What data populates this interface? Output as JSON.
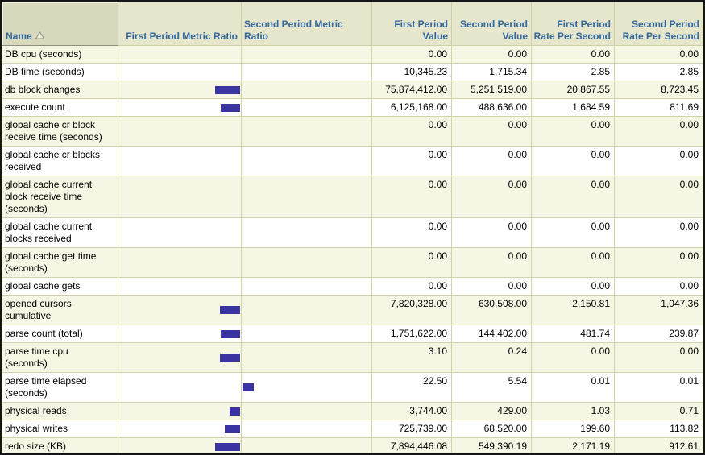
{
  "table": {
    "sort": {
      "sorted_by": "Name",
      "direction": "ascending"
    },
    "colors": {
      "bar": "#3A34A3",
      "header_bg": "#E6E6CD",
      "sorted_header_bg": "#D8D8BC",
      "header_text": "#336699",
      "alt_row_bg": "#F6F6E4",
      "grid_line": "#D2D2A8"
    },
    "columns": [
      {
        "label": "Name"
      },
      {
        "label": "First Period Metric Ratio"
      },
      {
        "label": "Second Period Metric Ratio"
      },
      {
        "label": "First Period Value"
      },
      {
        "label": "Second Period Value"
      },
      {
        "label": "First Period Rate Per Second"
      },
      {
        "label": "Second Period Rate Per Second"
      }
    ],
    "rows": [
      {
        "name": "DB cpu (seconds)",
        "first_bar": 0,
        "second_bar": 0,
        "first_value": "0.00",
        "second_value": "0.00",
        "first_rate": "0.00",
        "second_rate": "0.00"
      },
      {
        "name": "DB time (seconds)",
        "first_bar": 0,
        "second_bar": 0,
        "first_value": "10,345.23",
        "second_value": "1,715.34",
        "first_rate": "2.85",
        "second_rate": "2.85"
      },
      {
        "name": "db block changes",
        "first_bar": 31,
        "second_bar": 0,
        "first_value": "75,874,412.00",
        "second_value": "5,251,519.00",
        "first_rate": "20,867.55",
        "second_rate": "8,723.45"
      },
      {
        "name": "execute count",
        "first_bar": 24,
        "second_bar": 0,
        "first_value": "6,125,168.00",
        "second_value": "488,636.00",
        "first_rate": "1,684.59",
        "second_rate": "811.69"
      },
      {
        "name": "global cache cr block receive time (seconds)",
        "first_bar": 0,
        "second_bar": 0,
        "first_value": "0.00",
        "second_value": "0.00",
        "first_rate": "0.00",
        "second_rate": "0.00"
      },
      {
        "name": "global cache cr blocks received",
        "first_bar": 0,
        "second_bar": 0,
        "first_value": "0.00",
        "second_value": "0.00",
        "first_rate": "0.00",
        "second_rate": "0.00"
      },
      {
        "name": "global cache current block receive time (seconds)",
        "first_bar": 0,
        "second_bar": 0,
        "first_value": "0.00",
        "second_value": "0.00",
        "first_rate": "0.00",
        "second_rate": "0.00"
      },
      {
        "name": "global cache current blocks received",
        "first_bar": 0,
        "second_bar": 0,
        "first_value": "0.00",
        "second_value": "0.00",
        "first_rate": "0.00",
        "second_rate": "0.00"
      },
      {
        "name": "global cache get time (seconds)",
        "first_bar": 0,
        "second_bar": 0,
        "first_value": "0.00",
        "second_value": "0.00",
        "first_rate": "0.00",
        "second_rate": "0.00"
      },
      {
        "name": "global cache gets",
        "first_bar": 0,
        "second_bar": 0,
        "first_value": "0.00",
        "second_value": "0.00",
        "first_rate": "0.00",
        "second_rate": "0.00"
      },
      {
        "name": "opened cursors cumulative",
        "first_bar": 25,
        "second_bar": 0,
        "first_value": "7,820,328.00",
        "second_value": "630,508.00",
        "first_rate": "2,150.81",
        "second_rate": "1,047.36"
      },
      {
        "name": "parse count (total)",
        "first_bar": 24,
        "second_bar": 0,
        "first_value": "1,751,622.00",
        "second_value": "144,402.00",
        "first_rate": "481.74",
        "second_rate": "239.87"
      },
      {
        "name": "parse time cpu (seconds)",
        "first_bar": 25,
        "second_bar": 0,
        "first_value": "3.10",
        "second_value": "0.24",
        "first_rate": "0.00",
        "second_rate": "0.00"
      },
      {
        "name": "parse time elapsed (seconds)",
        "first_bar": 0,
        "second_bar": 14,
        "first_value": "22.50",
        "second_value": "5.54",
        "first_rate": "0.01",
        "second_rate": "0.01"
      },
      {
        "name": "physical reads",
        "first_bar": 13,
        "second_bar": 0,
        "first_value": "3,744.00",
        "second_value": "429.00",
        "first_rate": "1.03",
        "second_rate": "0.71"
      },
      {
        "name": "physical writes",
        "first_bar": 19,
        "second_bar": 0,
        "first_value": "725,739.00",
        "second_value": "68,520.00",
        "first_rate": "199.60",
        "second_rate": "113.82"
      },
      {
        "name": "redo size (KB)",
        "first_bar": 31,
        "second_bar": 0,
        "first_value": "7,894,446.08",
        "second_value": "549,390.19",
        "first_rate": "2,171.19",
        "second_rate": "912.61"
      }
    ]
  }
}
